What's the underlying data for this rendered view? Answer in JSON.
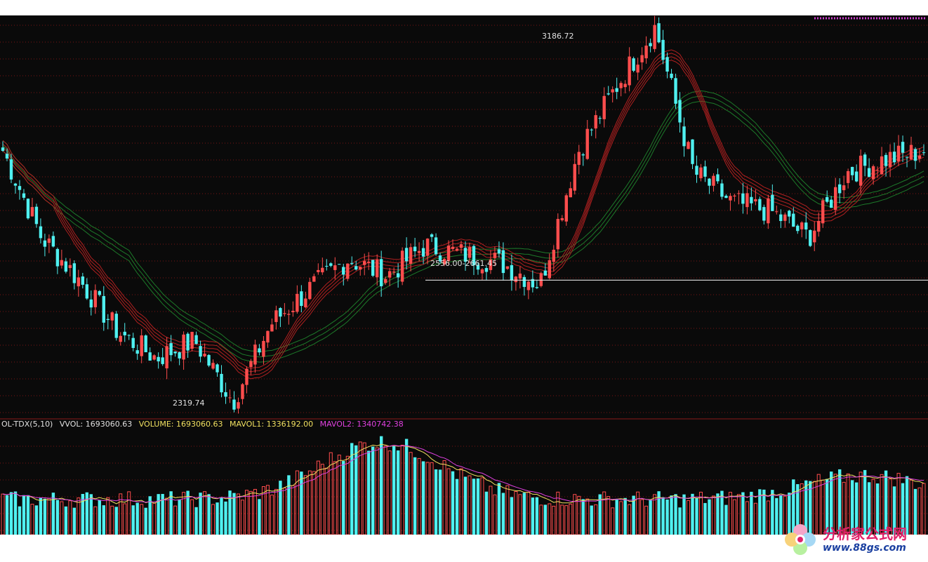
{
  "indicator": {
    "name": "OL-TDX(5,10)",
    "vvol": "VVOL: 1693060.63",
    "volume": "VOLUME: 1693060.63",
    "mavol1": "MAVOL1: 1336192.00",
    "mavol2": "MAVOL2: 1340742.38"
  },
  "annotations": {
    "high": "3186.72",
    "low": "2319.74",
    "range": "2556.00-2661.45"
  },
  "logo": {
    "text": "分析家公式网",
    "url": "www.88gs.com"
  },
  "colors": {
    "background": "#0a0a0a",
    "up": "#ff4d4d",
    "down": "#4ff0f0",
    "ma_blue": "#2b3fd0",
    "ma_red": "#b02020",
    "ma_green": "#1d7a2a",
    "grid": "#7a1414",
    "mavol1": "#f0e060",
    "mavol2": "#e040e0"
  },
  "chart_data": {
    "type": "candlestick",
    "price_range": [
      2300,
      3200
    ],
    "price_keypoints": [
      2900,
      2700,
      2600,
      2480,
      2420,
      2460,
      2320,
      2500,
      2580,
      2650,
      2610,
      2680,
      2660,
      2640,
      2590,
      2900,
      3050,
      3186.72,
      2850,
      2780,
      2760,
      2700,
      2850,
      2880,
      2900
    ]
  }
}
